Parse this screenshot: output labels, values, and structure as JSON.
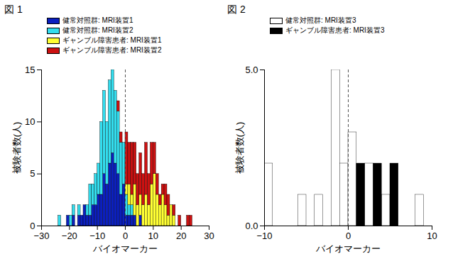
{
  "chart_data": [
    {
      "type": "histogram",
      "title": "図 1",
      "x_label": "バイオマーカー",
      "y_label": "被験者数(人)",
      "xlim": [
        -30,
        30
      ],
      "xticks": [
        -30,
        -20,
        -10,
        0,
        10,
        20,
        30
      ],
      "ylim": [
        0,
        15
      ],
      "yticks": [
        0,
        5,
        10,
        15
      ],
      "vline": 0,
      "legend": "top-left",
      "stacked": true,
      "bins": [
        -25,
        -24,
        -23,
        -22,
        -21,
        -20,
        -19,
        -18,
        -17,
        -16,
        -15,
        -14,
        -13,
        -12,
        -11,
        -10,
        -9,
        -8,
        -7,
        -6,
        -5,
        -4,
        -3,
        -2,
        -1,
        0,
        1,
        2,
        3,
        4,
        5,
        6,
        7,
        8,
        9,
        10,
        11,
        12,
        13,
        14,
        15,
        16,
        17,
        18,
        19,
        20,
        21,
        22,
        23,
        24,
        25
      ],
      "series": [
        {
          "name": "健常対照群: MRI装置1",
          "color": "#0b1fbf",
          "values": [
            0,
            0,
            0,
            0,
            1,
            0,
            1,
            0,
            1,
            1,
            2,
            1,
            1,
            2,
            2,
            3,
            3,
            5,
            4,
            6,
            7,
            6,
            5,
            3,
            4,
            1,
            1,
            1,
            1,
            0,
            1,
            0,
            0,
            0,
            0,
            0,
            0,
            0,
            0,
            0,
            0,
            0,
            0,
            0,
            0,
            0,
            0,
            0,
            0,
            0
          ]
        },
        {
          "name": "健常対照群: MRI装置2",
          "color": "#33ddee",
          "values": [
            0,
            1,
            0,
            0,
            0,
            1,
            1,
            0,
            1,
            0,
            0,
            1,
            3,
            2,
            3,
            3,
            7,
            8,
            6,
            8,
            8,
            7,
            6,
            5,
            4,
            2,
            1,
            1,
            0,
            0,
            0,
            0,
            0,
            0,
            0,
            0,
            0,
            0,
            0,
            0,
            0,
            0,
            0,
            0,
            0,
            0,
            0,
            0,
            0,
            0
          ]
        },
        {
          "name": "ギャンブル障害患者: MRI装置1",
          "color": "#ffff33",
          "values": [
            0,
            0,
            0,
            0,
            0,
            0,
            0,
            0,
            0,
            0,
            0,
            0,
            0,
            0,
            0,
            0,
            0,
            0,
            0,
            0,
            0,
            0,
            0,
            0,
            0,
            1,
            2,
            1,
            3,
            2,
            2,
            2,
            3,
            2,
            4,
            5,
            3,
            2,
            3,
            2,
            1,
            2,
            1,
            0,
            0,
            0,
            0,
            0,
            0,
            0
          ]
        },
        {
          "name": "ギャンブル障害患者: MRI装置2",
          "color": "#cc1111",
          "values": [
            0,
            0,
            0,
            0,
            0,
            0,
            0,
            0,
            0,
            0,
            0,
            0,
            0,
            0,
            0,
            0,
            0,
            0,
            0,
            0,
            0,
            0,
            1,
            1,
            0,
            5,
            4,
            5,
            4,
            3,
            4,
            3,
            5,
            3,
            4,
            3,
            2,
            1,
            1,
            2,
            2,
            0,
            1,
            0,
            1,
            0,
            0,
            1,
            1,
            0
          ]
        }
      ]
    },
    {
      "type": "histogram",
      "title": "図 2",
      "x_label": "バイオマーカー",
      "y_label": "被験者数(人)",
      "xlim": [
        -10,
        10
      ],
      "xticks": [
        -10,
        0,
        10
      ],
      "ylim": [
        0,
        5
      ],
      "yticks": [
        0,
        5
      ],
      "vline": 0,
      "legend": "top-left",
      "stacked": true,
      "bins": [
        -10,
        -9,
        -8,
        -7,
        -6,
        -5,
        -4,
        -3,
        -2,
        -1,
        0,
        1,
        2,
        3,
        4,
        5,
        6,
        7,
        8,
        9,
        10
      ],
      "series": [
        {
          "name": "健常対照群: MRI装置3",
          "color": "#ffffff",
          "values": [
            2,
            0,
            0,
            0,
            1,
            0,
            1,
            0,
            5,
            2,
            3,
            0,
            2,
            0,
            1,
            0,
            0,
            0,
            1,
            0
          ]
        },
        {
          "name": "ギャンブル障害患者: MRI装置3",
          "color": "#000000",
          "values": [
            0,
            0,
            0,
            0,
            0,
            0,
            0,
            0,
            0,
            0,
            0,
            2,
            0,
            2,
            0,
            2,
            0,
            0,
            0,
            0
          ]
        }
      ]
    }
  ]
}
